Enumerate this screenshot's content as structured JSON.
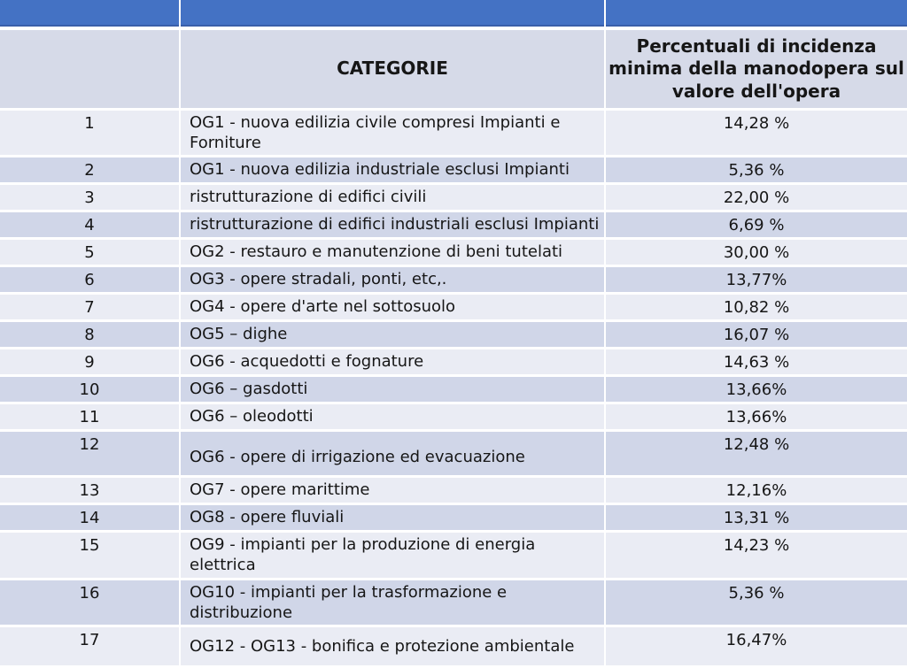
{
  "table": {
    "header": {
      "number_col": "",
      "category_col": "CATEGORIE",
      "percentage_col": "Percentuali di incidenza minima della manodopera sul valore dell'opera"
    },
    "rows": [
      {
        "n": "1",
        "category": "OG1 - nuova edilizia civile compresi Impianti e Forniture",
        "value": "14,28 %"
      },
      {
        "n": "2",
        "category": "OG1 - nuova edilizia industriale esclusi Impianti",
        "value": "5,36 %"
      },
      {
        "n": "3",
        "category": "ristrutturazione di edifici civili",
        "value": "22,00 %"
      },
      {
        "n": "4",
        "category": "ristrutturazione di edifici industriali esclusi Impianti",
        "value": "6,69 %"
      },
      {
        "n": "5",
        "category": "OG2 - restauro e manutenzione di beni tutelati",
        "value": "30,00 %"
      },
      {
        "n": "6",
        "category": "OG3 - opere stradali, ponti, etc,.",
        "value": "13,77%"
      },
      {
        "n": "7",
        "category": "OG4 - opere d'arte nel sottosuolo",
        "value": "10,82 %"
      },
      {
        "n": "8",
        "category": "OG5 – dighe",
        "value": "16,07 %"
      },
      {
        "n": "9",
        "category": "OG6 - acquedotti e fognature",
        "value": "14,63 %"
      },
      {
        "n": "10",
        "category": "OG6 – gasdotti",
        "value": "13,66%"
      },
      {
        "n": "11",
        "category": "OG6 – oleodotti",
        "value": "13,66%"
      },
      {
        "n": "12",
        "category": "OG6 - opere di irrigazione ed evacuazione",
        "value": "12,48 %"
      },
      {
        "n": "13",
        "category": "OG7 - opere marittime",
        "value": "12,16%"
      },
      {
        "n": "14",
        "category": "OG8 - opere fluviali",
        "value": "13,31 %"
      },
      {
        "n": "15",
        "category": "OG9 - impianti per la produzione di energia elettrica",
        "value": "14,23 %"
      },
      {
        "n": "16",
        "category": "OG10 - impianti per la trasformazione e distribuzione",
        "value": "5,36 %"
      },
      {
        "n": "17",
        "category": "OG12 - OG13 - bonifica e protezione ambientale",
        "value": "16,47%"
      }
    ]
  },
  "colors": {
    "banner_blue": "#4472C4",
    "banner_blue_edge": "#3A5FA9",
    "header_bg": "#D6DAE8",
    "row_dark": "#D0D6E8",
    "row_light": "#EAECF4",
    "divider": "#FFFFFF",
    "text": "#161616"
  }
}
